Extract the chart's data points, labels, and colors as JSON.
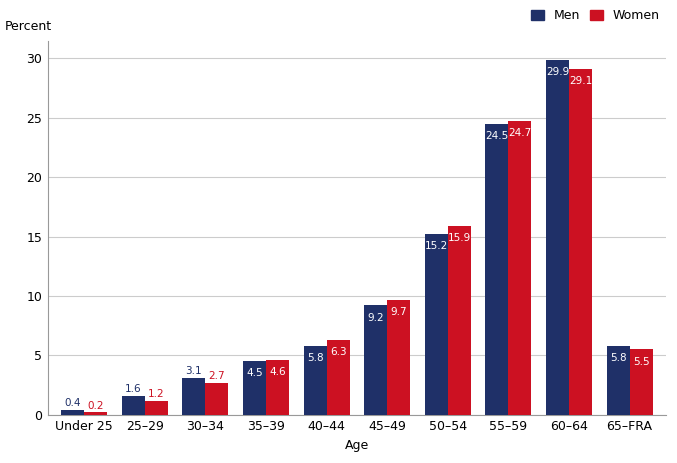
{
  "categories": [
    "Under 25",
    "25–29",
    "30–34",
    "35–39",
    "40–44",
    "45–49",
    "50–54",
    "55–59",
    "60–64",
    "65–FRA"
  ],
  "men": [
    0.4,
    1.6,
    3.1,
    4.5,
    5.8,
    9.2,
    15.2,
    24.5,
    29.9,
    5.8
  ],
  "women": [
    0.2,
    1.2,
    2.7,
    4.6,
    6.3,
    9.7,
    15.9,
    24.7,
    29.1,
    5.5
  ],
  "men_color": "#1f3068",
  "women_color": "#cc1122",
  "ylabel_top": "Percent",
  "xlabel": "Age",
  "ylim": [
    0,
    31.5
  ],
  "yticks": [
    0,
    5,
    10,
    15,
    20,
    25,
    30
  ],
  "bar_width": 0.38,
  "background_color": "#ffffff",
  "grid_color": "#cccccc",
  "legend_labels": [
    "Men",
    "Women"
  ]
}
